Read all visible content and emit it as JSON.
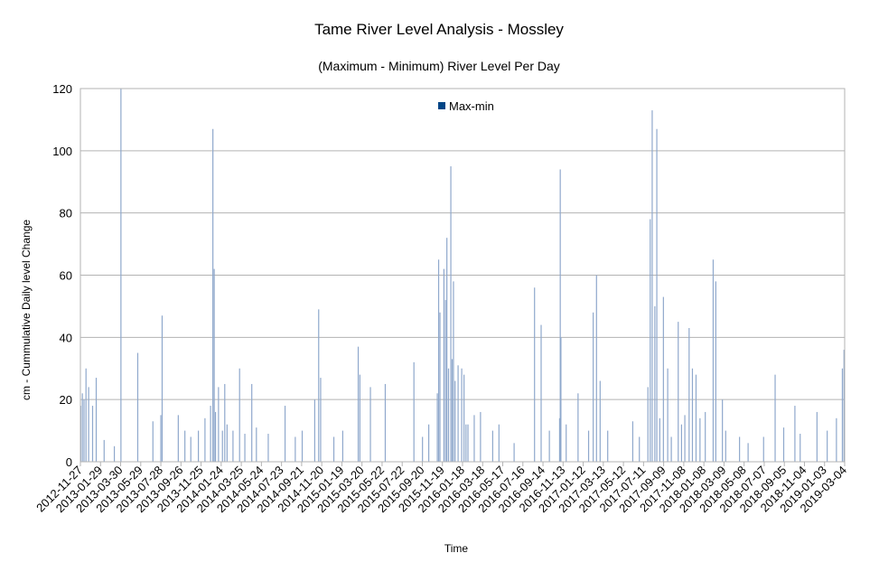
{
  "chart_data": {
    "type": "bar",
    "title": "Tame River Level Analysis - Mossley",
    "subtitle": "(Maximum - Minimum) River Level Per Day",
    "xlabel": "Time",
    "ylabel": "cm - Cummulative Daily level Change",
    "ylim": [
      0,
      120
    ],
    "yticks": [
      0,
      20,
      40,
      60,
      80,
      100,
      120
    ],
    "grid": true,
    "legend_position": "top-center",
    "colors": {
      "series": "#004586",
      "bar_fill": "#8fa8cc",
      "grid": "#b3b3b3"
    },
    "xlim": [
      "2012-11-27",
      "2019-04-04"
    ],
    "xtick_labels": [
      "2012-11-27",
      "2013-01-29",
      "2013-03-30",
      "2013-05-29",
      "2013-07-28",
      "2013-09-26",
      "2013-11-25",
      "2014-01-24",
      "2014-03-25",
      "2014-05-24",
      "2014-07-23",
      "2014-09-21",
      "2014-11-20",
      "2015-01-19",
      "2015-03-20",
      "2015-05-22",
      "2015-07-22",
      "2015-09-20",
      "2015-11-19",
      "2016-01-18",
      "2016-03-18",
      "2016-05-17",
      "2016-07-16",
      "2016-09-14",
      "2016-11-13",
      "2017-01-12",
      "2017-03-13",
      "2017-05-12",
      "2017-07-11",
      "2017-09-09",
      "2017-11-08",
      "2018-01-08",
      "2018-03-09",
      "2018-05-08",
      "2018-07-07",
      "2018-09-05",
      "2018-11-04",
      "2019-01-03",
      "2019-03-04"
    ],
    "series": [
      {
        "name": "Max-min",
        "x": [
          "2012-11-28",
          "2012-12-03",
          "2012-12-08",
          "2012-12-14",
          "2012-12-22",
          "2013-01-03",
          "2013-01-14",
          "2013-02-07",
          "2013-03-10",
          "2013-03-30",
          "2013-05-20",
          "2013-07-05",
          "2013-08-02",
          "2013-07-29",
          "2013-09-20",
          "2013-10-10",
          "2013-10-28",
          "2013-11-20",
          "2013-12-10",
          "2013-12-27",
          "2014-01-03",
          "2014-01-07",
          "2014-01-11",
          "2014-01-20",
          "2014-02-01",
          "2014-02-08",
          "2014-02-15",
          "2014-03-05",
          "2014-03-25",
          "2014-04-10",
          "2014-05-01",
          "2014-05-15",
          "2014-06-20",
          "2014-08-10",
          "2014-09-10",
          "2014-10-01",
          "2014-11-08",
          "2014-11-20",
          "2014-11-26",
          "2015-01-05",
          "2015-02-01",
          "2015-03-20",
          "2015-03-25",
          "2015-04-26",
          "2015-06-10",
          "2015-09-05",
          "2015-10-01",
          "2015-10-20",
          "2015-11-15",
          "2015-11-19",
          "2015-11-23",
          "2015-12-05",
          "2015-12-10",
          "2015-12-14",
          "2015-12-19",
          "2015-12-26",
          "2015-12-30",
          "2016-01-03",
          "2016-01-08",
          "2016-01-17",
          "2016-01-28",
          "2016-02-04",
          "2016-02-10",
          "2016-02-16",
          "2016-03-06",
          "2016-03-25",
          "2016-05-01",
          "2016-05-20",
          "2016-07-05",
          "2016-09-05",
          "2016-09-25",
          "2016-10-20",
          "2016-11-20",
          "2016-11-22",
          "2016-11-24",
          "2016-12-10",
          "2017-01-15",
          "2017-02-16",
          "2017-03-02",
          "2017-03-12",
          "2017-03-23",
          "2017-04-15",
          "2017-06-30",
          "2017-07-20",
          "2017-08-15",
          "2017-08-22",
          "2017-08-28",
          "2017-09-05",
          "2017-09-11",
          "2017-09-20",
          "2017-10-01",
          "2017-10-14",
          "2017-10-25",
          "2017-11-15",
          "2017-11-25",
          "2017-12-05",
          "2017-12-18",
          "2017-12-28",
          "2018-01-08",
          "2018-01-20",
          "2018-02-05",
          "2018-03-01",
          "2018-03-09",
          "2018-03-29",
          "2018-04-08",
          "2018-05-20",
          "2018-06-15",
          "2018-08-01",
          "2018-09-05",
          "2018-10-01",
          "2018-11-04",
          "2018-11-20",
          "2019-01-10",
          "2019-02-10",
          "2019-03-10",
          "2019-03-28",
          "2019-04-02"
        ],
        "values": [
          18,
          22,
          20,
          30,
          24,
          18,
          27,
          7,
          5,
          120,
          35,
          13,
          47,
          15,
          15,
          10,
          8,
          10,
          14,
          18,
          107,
          62,
          16,
          24,
          10,
          25,
          12,
          10,
          30,
          9,
          25,
          11,
          9,
          18,
          8,
          10,
          20,
          49,
          27,
          8,
          10,
          37,
          28,
          24,
          25,
          32,
          8,
          12,
          22,
          65,
          48,
          62,
          52,
          72,
          30,
          95,
          33,
          58,
          26,
          31,
          30,
          28,
          12,
          12,
          15,
          16,
          10,
          12,
          6,
          56,
          44,
          10,
          14,
          94,
          40,
          12,
          22,
          10,
          48,
          60,
          26,
          10,
          13,
          8,
          24,
          78,
          113,
          50,
          107,
          14,
          53,
          30,
          8,
          45,
          12,
          15,
          43,
          30,
          28,
          14,
          16,
          65,
          58,
          20,
          10,
          8,
          6,
          8,
          28,
          11,
          18,
          9,
          16,
          10,
          14,
          30,
          36
        ]
      }
    ]
  }
}
